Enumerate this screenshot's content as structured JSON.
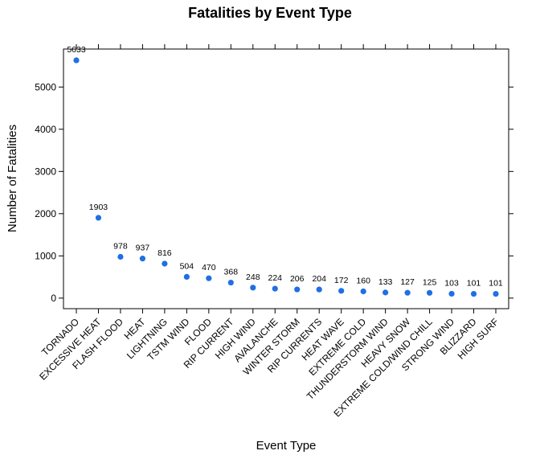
{
  "chart_data": {
    "type": "scatter",
    "title": "Fatalities by Event Type",
    "xlabel": "Event Type",
    "ylabel": "Number of Fatalities",
    "ylim": [
      -250,
      5900
    ],
    "yticks": [
      0,
      1000,
      2000,
      3000,
      4000,
      5000
    ],
    "categories": [
      "TORNADO",
      "EXCESSIVE HEAT",
      "FLASH FLOOD",
      "HEAT",
      "LIGHTNING",
      "TSTM WIND",
      "FLOOD",
      "RIP CURRENT",
      "HIGH WIND",
      "AVALANCHE",
      "WINTER STORM",
      "RIP CURRENTS",
      "HEAT WAVE",
      "EXTREME COLD",
      "THUNDERSTORM WIND",
      "HEAVY SNOW",
      "EXTREME COLD/WIND CHILL",
      "STRONG WIND",
      "BLIZZARD",
      "HIGH SURF"
    ],
    "values": [
      5633,
      1903,
      978,
      937,
      816,
      504,
      470,
      368,
      248,
      224,
      206,
      204,
      172,
      160,
      133,
      127,
      125,
      103,
      101,
      101
    ],
    "point_color": "#1f6fe5",
    "grid": false,
    "legend": "none"
  }
}
